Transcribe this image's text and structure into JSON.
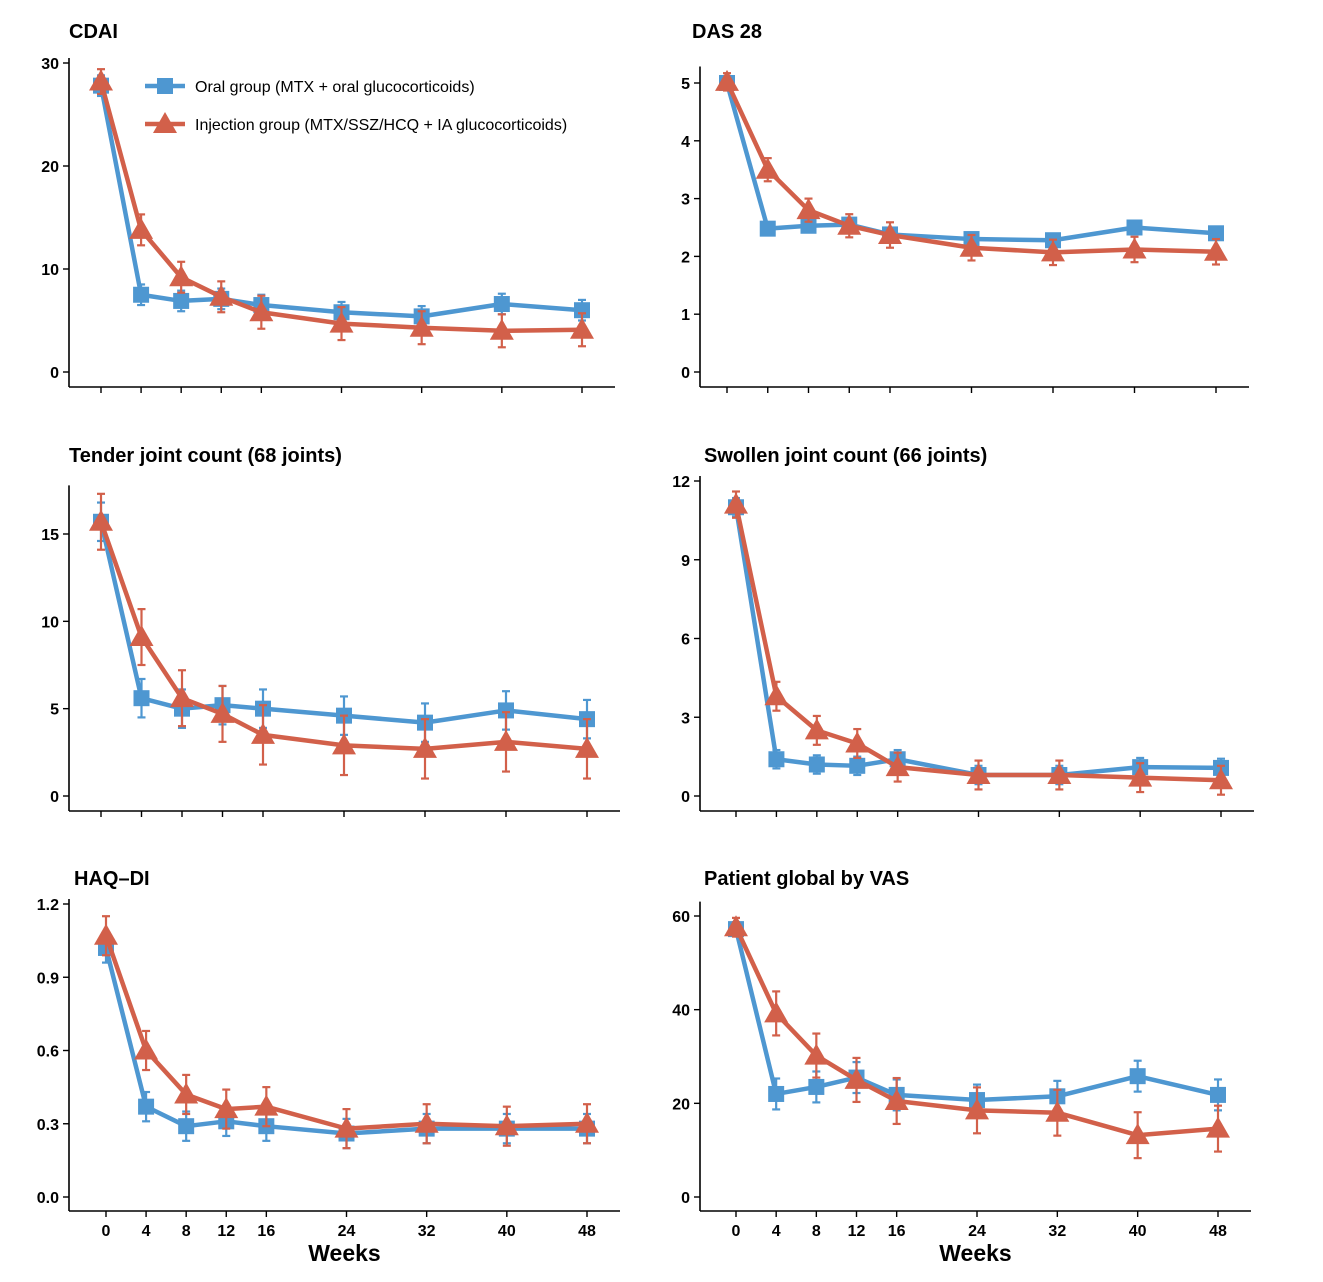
{
  "colors": {
    "oral": "#4E97D1",
    "injection": "#D2604A"
  },
  "legend": [
    {
      "name": "Oral group (MTX + oral glucocorticoids)",
      "color": "#4E97D1",
      "marker": "square"
    },
    {
      "name": "Injection group (MTX/SSZ/HCQ + IA glucocorticoids)",
      "color": "#D2604A",
      "marker": "triangle"
    }
  ],
  "chart_data": [
    {
      "type": "line",
      "title": "CDAI",
      "xlabel": "",
      "x": [
        0,
        4,
        8,
        12,
        16,
        24,
        32,
        40,
        48
      ],
      "ylim": [
        0,
        30
      ],
      "yticks": [
        0,
        10,
        20,
        30
      ],
      "series": [
        {
          "name": "Oral group (MTX + oral glucocorticoids)",
          "values": [
            27.8,
            7.5,
            6.9,
            7.1,
            6.5,
            5.8,
            5.4,
            6.6,
            6.0
          ],
          "errors": [
            1.0,
            1.0,
            1.0,
            1.0,
            1.0,
            1.0,
            1.0,
            1.0,
            1.0
          ]
        },
        {
          "name": "Injection group (MTX/SSZ/HCQ + IA glucocorticoids)",
          "values": [
            28.2,
            13.8,
            9.2,
            7.3,
            5.8,
            4.7,
            4.3,
            4.0,
            4.1
          ],
          "errors": [
            1.2,
            1.5,
            1.5,
            1.5,
            1.6,
            1.6,
            1.6,
            1.6,
            1.6
          ]
        }
      ]
    },
    {
      "type": "line",
      "title": "DAS 28",
      "xlabel": "",
      "x": [
        0,
        4,
        8,
        12,
        16,
        24,
        32,
        40,
        48
      ],
      "ylim": [
        0,
        5.2
      ],
      "yticks": [
        0,
        1,
        2,
        3,
        4,
        5
      ],
      "series": [
        {
          "name": "Oral group (MTX + oral glucocorticoids)",
          "values": [
            5.0,
            2.48,
            2.53,
            2.55,
            2.38,
            2.3,
            2.28,
            2.5,
            2.4
          ],
          "errors": [
            0.1,
            0.1,
            0.1,
            0.1,
            0.1,
            0.1,
            0.1,
            0.1,
            0.1
          ]
        },
        {
          "name": "Injection group (MTX/SSZ/HCQ + IA glucocorticoids)",
          "values": [
            5.02,
            3.5,
            2.8,
            2.53,
            2.37,
            2.15,
            2.07,
            2.12,
            2.08
          ],
          "errors": [
            0.15,
            0.2,
            0.2,
            0.2,
            0.22,
            0.22,
            0.22,
            0.22,
            0.22
          ]
        }
      ]
    },
    {
      "type": "line",
      "title": "Tender joint count (68 joints)",
      "xlabel": "",
      "x": [
        0,
        4,
        8,
        12,
        16,
        24,
        32,
        40,
        48
      ],
      "ylim": [
        0,
        17.5
      ],
      "yticks": [
        0,
        5,
        10,
        15
      ],
      "series": [
        {
          "name": "Oral group (MTX + oral glucocorticoids)",
          "values": [
            15.7,
            5.6,
            5.0,
            5.2,
            5.0,
            4.6,
            4.2,
            4.9,
            4.4
          ],
          "errors": [
            1.1,
            1.1,
            1.1,
            1.1,
            1.1,
            1.1,
            1.1,
            1.1,
            1.1
          ]
        },
        {
          "name": "Injection group (MTX/SSZ/HCQ + IA glucocorticoids)",
          "values": [
            15.7,
            9.1,
            5.6,
            4.7,
            3.5,
            2.9,
            2.7,
            3.1,
            2.7
          ],
          "errors": [
            1.6,
            1.6,
            1.6,
            1.6,
            1.7,
            1.7,
            1.7,
            1.7,
            1.7
          ]
        }
      ]
    },
    {
      "type": "line",
      "title": "Swollen joint count (66 joints)",
      "xlabel": "",
      "x": [
        0,
        4,
        8,
        12,
        16,
        24,
        32,
        40,
        48
      ],
      "ylim": [
        0,
        12
      ],
      "yticks": [
        0,
        3,
        6,
        9,
        12
      ],
      "series": [
        {
          "name": "Oral group (MTX + oral glucocorticoids)",
          "values": [
            11.0,
            1.4,
            1.2,
            1.15,
            1.4,
            0.8,
            0.8,
            1.1,
            1.07
          ],
          "errors": [
            0.35,
            0.35,
            0.35,
            0.35,
            0.35,
            0.35,
            0.35,
            0.35,
            0.35
          ]
        },
        {
          "name": "Injection group (MTX/SSZ/HCQ + IA glucocorticoids)",
          "values": [
            11.1,
            3.8,
            2.5,
            2.0,
            1.1,
            0.8,
            0.8,
            0.7,
            0.6
          ],
          "errors": [
            0.5,
            0.55,
            0.55,
            0.55,
            0.55,
            0.55,
            0.55,
            0.55,
            0.55
          ]
        }
      ]
    },
    {
      "type": "line",
      "title": "HAQ–DI",
      "xlabel": "Weeks",
      "x": [
        0,
        4,
        8,
        12,
        16,
        24,
        32,
        40,
        48
      ],
      "ylim": [
        0,
        1.2
      ],
      "yticks": [
        "0.0",
        "0.3",
        "0.6",
        "0.9",
        "1.2"
      ],
      "series": [
        {
          "name": "Oral group (MTX + oral glucocorticoids)",
          "values": [
            1.02,
            0.37,
            0.29,
            0.31,
            0.29,
            0.26,
            0.28,
            0.28,
            0.28
          ],
          "errors": [
            0.06,
            0.06,
            0.06,
            0.06,
            0.06,
            0.06,
            0.06,
            0.06,
            0.06
          ]
        },
        {
          "name": "Injection group (MTX/SSZ/HCQ + IA glucocorticoids)",
          "values": [
            1.07,
            0.6,
            0.42,
            0.36,
            0.37,
            0.28,
            0.3,
            0.29,
            0.3
          ],
          "errors": [
            0.08,
            0.08,
            0.08,
            0.08,
            0.08,
            0.08,
            0.08,
            0.08,
            0.08
          ]
        }
      ]
    },
    {
      "type": "line",
      "title": "Patient global by VAS",
      "xlabel": "Weeks",
      "x": [
        0,
        4,
        8,
        12,
        16,
        24,
        32,
        40,
        48
      ],
      "ylim": [
        0,
        62
      ],
      "yticks": [
        0,
        20,
        40,
        60
      ],
      "series": [
        {
          "name": "Oral group (MTX + oral glucocorticoids)",
          "values": [
            57.2,
            22.0,
            23.5,
            25.5,
            21.8,
            20.7,
            21.5,
            25.8,
            21.8
          ],
          "errors": [
            1.5,
            3.3,
            3.3,
            3.3,
            3.3,
            3.3,
            3.3,
            3.3,
            3.3
          ]
        },
        {
          "name": "Injection group (MTX/SSZ/HCQ + IA glucocorticoids)",
          "values": [
            57.6,
            39.2,
            30.2,
            25.0,
            20.5,
            18.5,
            18.0,
            13.2,
            14.6
          ],
          "errors": [
            2.0,
            4.7,
            4.7,
            4.7,
            4.9,
            4.9,
            4.9,
            4.9,
            4.9
          ]
        }
      ]
    }
  ]
}
